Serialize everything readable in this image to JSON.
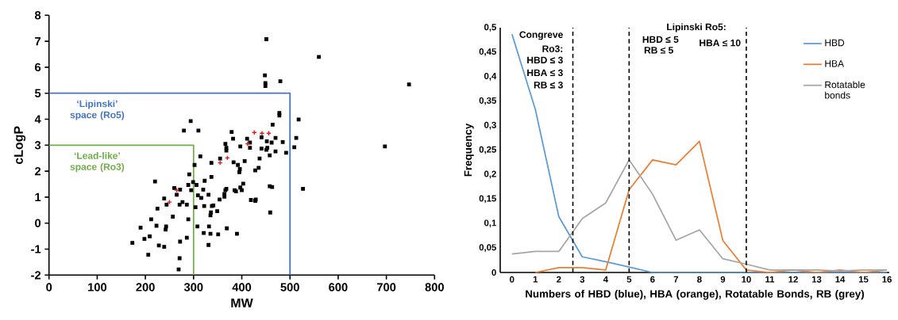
{
  "chart_data": [
    {
      "type": "scatter",
      "xlabel": "MW",
      "ylabel": "cLogP",
      "xlim": [
        0,
        800
      ],
      "ylim": [
        -2,
        8
      ],
      "xticks": [
        0,
        100,
        200,
        300,
        400,
        500,
        600,
        700,
        800
      ],
      "yticks": [
        -2,
        -1,
        0,
        1,
        2,
        3,
        4,
        5,
        6,
        7,
        8
      ],
      "series": [
        {
          "type": "scatter",
          "color": "#000000",
          "marker": "square",
          "x": [
            173,
            190,
            198,
            206,
            209,
            212,
            220,
            223,
            225,
            228,
            239,
            239,
            242,
            243,
            244,
            257,
            260,
            265,
            272,
            271,
            272,
            271,
            269,
            277,
            280,
            286,
            286,
            289,
            289,
            291,
            294,
            295,
            299,
            302,
            304,
            306,
            308,
            309,
            310,
            314,
            316,
            320,
            321,
            322,
            323,
            331,
            331,
            332,
            335,
            335,
            336,
            337,
            337,
            338,
            341,
            349,
            351,
            354,
            355,
            364,
            364,
            366,
            368,
            366,
            368,
            368,
            369,
            379,
            382,
            383,
            385,
            388,
            390,
            392,
            396,
            395,
            397,
            397,
            400,
            403,
            406,
            411,
            417,
            417,
            419,
            428,
            428,
            429,
            435,
            437,
            441,
            441,
            451,
            452,
            453,
            458,
            458,
            459,
            462,
            463,
            464,
            470,
            470,
            478,
            478,
            485,
            492,
            509,
            513,
            518,
            527,
            697,
            451,
            448,
            449,
            449,
            480,
            560,
            747
          ],
          "values": [
            -0.76,
            -0.17,
            -0.61,
            -1.22,
            -0.51,
            0.15,
            1.6,
            -0.1,
            0.56,
            -0.86,
            -0.91,
            0.95,
            -0.25,
            -0.13,
            0.71,
            0.25,
            1.35,
            1.09,
            1.29,
            0.71,
            -0.71,
            -1.35,
            -1.78,
            0.81,
            3.56,
            -0.56,
            0.71,
            0.15,
            1.47,
            1.88,
            3.93,
            1.27,
            1.58,
            2.24,
            0.61,
            1.47,
            -0.13,
            1.07,
            3.56,
            2.57,
            0.97,
            1.29,
            -0.38,
            0.66,
            1.63,
            1.09,
            -0.84,
            -0.13,
            -0.41,
            0.3,
            0.41,
            1.78,
            2.32,
            0.66,
            0.68,
            0.46,
            -0.43,
            0.91,
            2.49,
            1.12,
            1.02,
            1.27,
            1.32,
            3.05,
            2.9,
            2.79,
            -0.2,
            3.51,
            3.25,
            2.34,
            1.27,
            1.22,
            -0.41,
            2.24,
            2.08,
            1.96,
            2.95,
            1.37,
            1.27,
            1.52,
            2.39,
            3.25,
            3.1,
            2.9,
            0.89,
            2.03,
            0.86,
            0.91,
            2.13,
            2.49,
            3.3,
            2.87,
            2.82,
            3.15,
            2.9,
            2.61,
            1.42,
            0.41,
            3.1,
            1.39,
            3.79,
            3.28,
            2.76,
            4.24,
            4.14,
            3.12,
            2.71,
            2.92,
            3.28,
            3.99,
            1.32,
            2.95,
            7.08,
            5.69,
            5.39,
            5.28,
            5.46,
            6.4,
            5.34
          ]
        },
        {
          "type": "scatter",
          "color": "#e8141c",
          "marker": "cross",
          "x": [
            250,
            265,
            355,
            370,
            412,
            426,
            442,
            456
          ],
          "values": [
            0.81,
            1.27,
            2.32,
            2.51,
            3.05,
            3.49,
            3.46,
            3.46
          ]
        },
        {
          "type": "line",
          "name": "‘Lipinski’ space (Ro5)",
          "color": "#4472c4",
          "x": [
            0,
            500,
            500
          ],
          "values": [
            5,
            5,
            -2
          ]
        },
        {
          "type": "line",
          "name": "‘Lead-like’ space (Ro3)",
          "color": "#70ad47",
          "x": [
            0,
            300,
            300
          ],
          "values": [
            3,
            3,
            -2
          ]
        }
      ]
    },
    {
      "type": "line",
      "xlabel": "Numbers of HBD (blue), HBA (orange), Rotatable Bonds, RB (grey)",
      "ylabel": "Frequency",
      "x": [
        0,
        1,
        2,
        3,
        4,
        5,
        6,
        7,
        8,
        9,
        10,
        11,
        12,
        13,
        14,
        15,
        16
      ],
      "xlim": [
        -0.5,
        16.1
      ],
      "ylim": [
        0,
        0.5
      ],
      "xticks": [
        0,
        1,
        2,
        3,
        4,
        5,
        6,
        7,
        8,
        9,
        10,
        11,
        12,
        13,
        14,
        15,
        16
      ],
      "yticks": [
        0,
        {
          "value": 0.05,
          "label": "0,05"
        },
        {
          "value": 0.1,
          "label": "0,1"
        },
        {
          "value": 0.15,
          "label": "0,15"
        },
        {
          "value": 0.2,
          "label": "0,2"
        },
        {
          "value": 0.25,
          "label": "0,25"
        },
        {
          "value": 0.3,
          "label": "0,3"
        },
        {
          "value": 0.35,
          "label": "0,35"
        },
        {
          "value": 0.4,
          "label": "0,4"
        },
        {
          "value": 0.45,
          "label": "0,45"
        },
        {
          "value": 0.5,
          "label": "0,5"
        }
      ],
      "legend": "top right",
      "series": [
        {
          "name": "HBD",
          "color": "#5b9bd5",
          "values": [
            0.487,
            0.333,
            0.114,
            0.032,
            0.022,
            0.011,
            0,
            0,
            0,
            0,
            0,
            0,
            0,
            0,
            0,
            0,
            0
          ]
        },
        {
          "name": "HBA",
          "color": "#ed7d31",
          "values": [
            null,
            0,
            0.01,
            0.01,
            0.005,
            0.169,
            0.23,
            0.22,
            0.268,
            0.065,
            0.005,
            0,
            0.005,
            0,
            0.005,
            0,
            0.005
          ]
        },
        {
          "name": "Rotatable bonds",
          "color": "#a5a5a5",
          "values": [
            0.038,
            0.043,
            0.043,
            0.11,
            0.142,
            0.23,
            0.16,
            0.066,
            0.087,
            0.028,
            0.017,
            0.005,
            0.005,
            0.005,
            0.003,
            0.005,
            0.005
          ]
        }
      ],
      "ref_lines": [
        {
          "axis": "x",
          "value": 2.6,
          "color": "#000000",
          "line_style": "dashed"
        },
        {
          "axis": "x",
          "value": 5,
          "color": "#000000",
          "line_style": "dashed"
        },
        {
          "axis": "x",
          "value": 10,
          "color": "#000000",
          "line_style": "dashed"
        }
      ],
      "annotations": [
        "Congreve",
        "Ro3:",
        "HBD ≤ 3",
        "HBA ≤ 3",
        "RB  ≤ 3",
        "Lipinski Ro5:",
        "HBD ≤ 5",
        "RB  ≤ 5",
        "HBA ≤ 10"
      ]
    }
  ]
}
